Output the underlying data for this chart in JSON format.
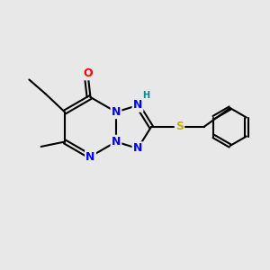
{
  "bg_color": "#e8e8e8",
  "bond_color": "#000000",
  "atom_colors": {
    "N": "#0000ff",
    "O": "#ff0000",
    "S": "#ccaa00",
    "H": "#008888",
    "C": "#000000"
  },
  "bond_width": 1.5,
  "font_size_atom": 9,
  "font_size_small": 7
}
